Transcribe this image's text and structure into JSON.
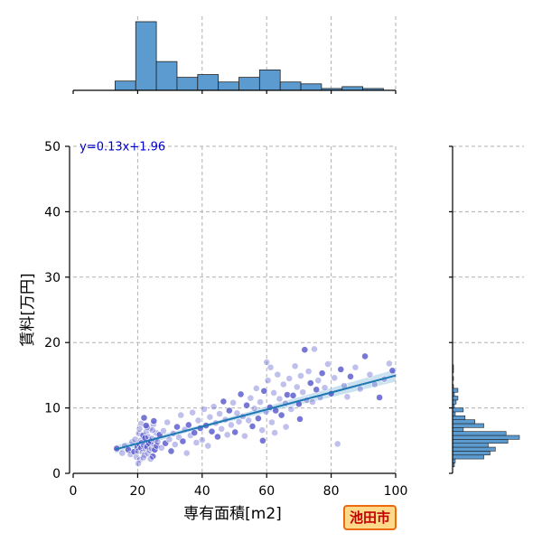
{
  "chart_data": {
    "type": "scatter",
    "xlabel": "専有面積[m2]",
    "ylabel": "賃料[万円]",
    "xlim": [
      0,
      100
    ],
    "ylim": [
      0,
      50
    ],
    "x_ticks": [
      0,
      20,
      40,
      60,
      80,
      100
    ],
    "y_ticks": [
      0,
      10,
      20,
      30,
      40,
      50
    ],
    "grid": true,
    "regression": {
      "equation": "y=0.13x+1.96",
      "slope": 0.13,
      "intercept": 1.96,
      "x_range": [
        13,
        100
      ]
    },
    "colors": {
      "points": "#4a4ac8",
      "line": "#1f77b4",
      "band": "#9ecae1",
      "hist": "#5b9bd0",
      "equation": "#0000cc"
    },
    "marginal_x_hist": {
      "bin_edges": [
        13,
        19.4,
        25.8,
        32.2,
        38.6,
        45,
        51.4,
        57.8,
        64.2,
        70.6,
        77,
        83.4,
        89.8,
        96.2
      ],
      "counts": [
        10,
        74,
        31,
        14,
        17,
        9,
        14,
        22,
        9,
        7,
        2,
        4,
        2
      ]
    },
    "marginal_y_hist": {
      "bin_edges": [
        1.0,
        1.6,
        2.2,
        2.8,
        3.4,
        4.0,
        4.6,
        5.2,
        5.8,
        6.4,
        7.0,
        7.6,
        8.2,
        8.8,
        9.4,
        10.0,
        10.6,
        11.2,
        11.8,
        12.4,
        13.0,
        13.6,
        14.2,
        14.8,
        15.4,
        16.0,
        16.6,
        17.2,
        17.8,
        18.4,
        19.0
      ],
      "counts": [
        2,
        3,
        35,
        42,
        48,
        40,
        62,
        75,
        60,
        12,
        35,
        25,
        14,
        3,
        12,
        2,
        4,
        6,
        2,
        6,
        1,
        0,
        1,
        0,
        1,
        1,
        0,
        0,
        0,
        0
      ]
    },
    "points": [
      [
        13.5,
        3.8
      ],
      [
        15.2,
        3.1
      ],
      [
        16.0,
        4.2
      ],
      [
        17.1,
        3.6
      ],
      [
        17.8,
        2.9
      ],
      [
        18.3,
        4.8
      ],
      [
        18.9,
        3.3
      ],
      [
        19.2,
        5.2
      ],
      [
        19.6,
        2.5
      ],
      [
        19.9,
        4.0
      ],
      [
        20.1,
        3.4
      ],
      [
        20.3,
        6.1
      ],
      [
        20.5,
        4.5
      ],
      [
        20.7,
        2.1
      ],
      [
        20.9,
        5.0
      ],
      [
        21.1,
        3.9
      ],
      [
        21.3,
        4.7
      ],
      [
        21.5,
        3.2
      ],
      [
        21.7,
        5.8
      ],
      [
        21.9,
        4.3
      ],
      [
        22.1,
        2.8
      ],
      [
        22.3,
        5.4
      ],
      [
        22.5,
        3.7
      ],
      [
        22.7,
        6.4
      ],
      [
        22.9,
        4.1
      ],
      [
        23.1,
        3.0
      ],
      [
        23.3,
        5.6
      ],
      [
        23.5,
        4.6
      ],
      [
        23.7,
        3.5
      ],
      [
        23.9,
        6.9
      ],
      [
        24.1,
        4.9
      ],
      [
        24.3,
        3.8
      ],
      [
        24.5,
        5.3
      ],
      [
        24.7,
        2.6
      ],
      [
        24.9,
        7.5
      ],
      [
        25.1,
        4.4
      ],
      [
        25.3,
        3.6
      ],
      [
        25.5,
        5.1
      ],
      [
        25.7,
        6.2
      ],
      [
        25.9,
        4.2
      ],
      [
        20.2,
        1.5
      ],
      [
        21.0,
        7.6
      ],
      [
        22.0,
        8.5
      ],
      [
        23.0,
        7.0
      ],
      [
        24.0,
        2.2
      ],
      [
        25.0,
        8.0
      ],
      [
        20.6,
        6.8
      ],
      [
        21.8,
        2.4
      ],
      [
        22.6,
        7.3
      ],
      [
        24.6,
        6.6
      ],
      [
        26.2,
        4.8
      ],
      [
        26.8,
        5.9
      ],
      [
        27.4,
        3.9
      ],
      [
        28.0,
        6.5
      ],
      [
        28.6,
        4.6
      ],
      [
        29.2,
        7.8
      ],
      [
        29.8,
        5.2
      ],
      [
        30.4,
        3.4
      ],
      [
        31.0,
        6.1
      ],
      [
        31.6,
        4.4
      ],
      [
        32.2,
        7.1
      ],
      [
        32.8,
        5.5
      ],
      [
        33.4,
        8.9
      ],
      [
        34.0,
        4.9
      ],
      [
        34.6,
        6.7
      ],
      [
        35.2,
        3.1
      ],
      [
        35.8,
        7.4
      ],
      [
        36.4,
        5.8
      ],
      [
        37.0,
        9.3
      ],
      [
        37.6,
        6.2
      ],
      [
        38.2,
        4.7
      ],
      [
        38.8,
        8.1
      ],
      [
        39.4,
        6.9
      ],
      [
        40.0,
        5.1
      ],
      [
        40.6,
        9.8
      ],
      [
        41.2,
        7.3
      ],
      [
        41.8,
        4.2
      ],
      [
        42.4,
        8.6
      ],
      [
        43.0,
        6.4
      ],
      [
        43.6,
        10.2
      ],
      [
        44.2,
        7.7
      ],
      [
        44.8,
        5.6
      ],
      [
        45.4,
        9.1
      ],
      [
        46.0,
        6.8
      ],
      [
        46.6,
        11.0
      ],
      [
        47.2,
        8.2
      ],
      [
        47.8,
        5.9
      ],
      [
        48.4,
        9.6
      ],
      [
        49.0,
        7.4
      ],
      [
        49.6,
        10.8
      ],
      [
        50.2,
        6.3
      ],
      [
        50.8,
        9.2
      ],
      [
        51.4,
        7.9
      ],
      [
        52.0,
        12.1
      ],
      [
        52.6,
        8.7
      ],
      [
        53.2,
        5.7
      ],
      [
        53.8,
        10.4
      ],
      [
        54.4,
        8.1
      ],
      [
        55.0,
        11.5
      ],
      [
        55.6,
        7.2
      ],
      [
        56.2,
        9.9
      ],
      [
        56.8,
        13.0
      ],
      [
        57.4,
        8.4
      ],
      [
        58.0,
        10.9
      ],
      [
        58.6,
        6.6
      ],
      [
        59.2,
        12.6
      ],
      [
        59.8,
        9.4
      ],
      [
        60.4,
        14.2
      ],
      [
        61.0,
        10.1
      ],
      [
        61.6,
        7.8
      ],
      [
        62.2,
        12.3
      ],
      [
        62.8,
        9.6
      ],
      [
        63.4,
        15.1
      ],
      [
        64.0,
        11.4
      ],
      [
        64.6,
        8.9
      ],
      [
        65.2,
        13.6
      ],
      [
        65.8,
        10.7
      ],
      [
        66.4,
        12.0
      ],
      [
        67.0,
        14.5
      ],
      [
        67.6,
        9.8
      ],
      [
        68.2,
        11.9
      ],
      [
        68.8,
        16.4
      ],
      [
        69.4,
        13.2
      ],
      [
        70.0,
        10.6
      ],
      [
        70.6,
        14.9
      ],
      [
        71.2,
        12.4
      ],
      [
        71.8,
        18.9
      ],
      [
        72.4,
        11.2
      ],
      [
        73.0,
        15.6
      ],
      [
        73.6,
        13.8
      ],
      [
        74.2,
        10.9
      ],
      [
        74.8,
        19.0
      ],
      [
        75.4,
        12.8
      ],
      [
        76.0,
        14.2
      ],
      [
        76.6,
        11.6
      ],
      [
        77.2,
        15.3
      ],
      [
        78.0,
        13.1
      ],
      [
        79.0,
        16.7
      ],
      [
        80.0,
        12.2
      ],
      [
        81.0,
        14.6
      ],
      [
        82.0,
        4.5
      ],
      [
        83.0,
        15.9
      ],
      [
        84.0,
        13.4
      ],
      [
        85.0,
        11.7
      ],
      [
        86.0,
        14.8
      ],
      [
        87.5,
        16.2
      ],
      [
        89.0,
        12.9
      ],
      [
        90.5,
        17.9
      ],
      [
        92.0,
        15.1
      ],
      [
        93.5,
        13.6
      ],
      [
        95.0,
        11.6
      ],
      [
        96.5,
        14.4
      ],
      [
        98.0,
        16.8
      ],
      [
        99.0,
        15.7
      ],
      [
        60.0,
        17.0
      ],
      [
        61.2,
        16.2
      ],
      [
        58.8,
        5.0
      ],
      [
        62.5,
        6.2
      ],
      [
        66.0,
        7.1
      ],
      [
        70.3,
        8.3
      ]
    ]
  },
  "badge": {
    "text": "池田市"
  }
}
